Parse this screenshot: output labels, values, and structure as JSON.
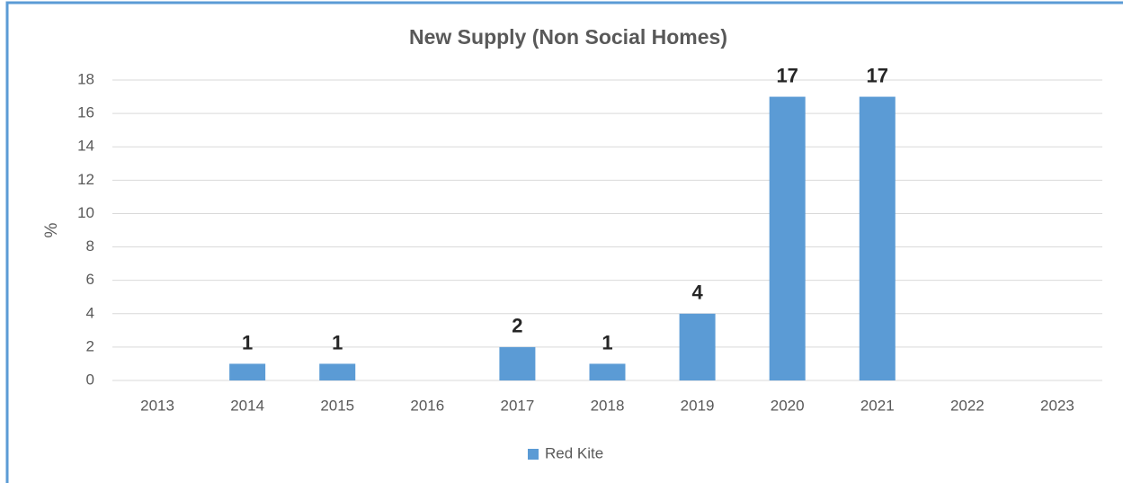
{
  "chart_data": {
    "type": "bar",
    "title": "New Supply (Non Social Homes)",
    "categories": [
      "2013",
      "2014",
      "2015",
      "2016",
      "2017",
      "2018",
      "2019",
      "2020",
      "2021",
      "2022",
      "2023"
    ],
    "series": [
      {
        "name": "Red Kite",
        "color": "#5b9bd5",
        "values": [
          null,
          1,
          1,
          null,
          2,
          1,
          4,
          17,
          17,
          null,
          null
        ]
      }
    ],
    "y_label": "%",
    "ylim": [
      0,
      18
    ],
    "yticks": [
      0,
      2,
      4,
      6,
      8,
      10,
      12,
      14,
      16,
      18
    ],
    "grid": true,
    "legend": "bottom"
  }
}
